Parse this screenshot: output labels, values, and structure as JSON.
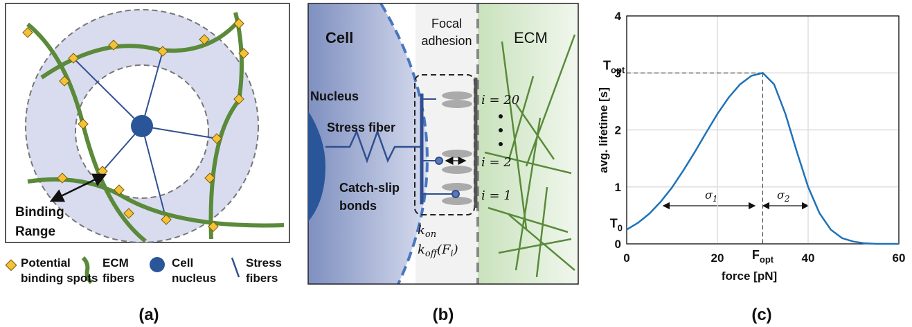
{
  "panel_a": {
    "binding_range": [
      "Binding",
      "Range"
    ],
    "legend": [
      [
        "Potential",
        "binding spots"
      ],
      [
        "ECM",
        "fibers"
      ],
      [
        "Cell",
        "nucleus"
      ],
      [
        "Stress",
        "fibers"
      ]
    ],
    "caption": "(a)"
  },
  "panel_b": {
    "cell": "Cell",
    "focal_adhesion": [
      "Focal",
      "adhesion"
    ],
    "ecm": "ECM",
    "nucleus": "Nucleus",
    "stress_fiber": "Stress fiber",
    "catch_slip": [
      "Catch-slip",
      "bonds"
    ],
    "bond_labels": [
      "i = 20",
      "i = 2",
      "i = 1"
    ],
    "k_on": [
      "k",
      "on"
    ],
    "k_off": [
      "k",
      "off",
      "(F",
      "i",
      ")"
    ],
    "caption": "(b)"
  },
  "chart_data": {
    "type": "line",
    "x_label": "force [pN]",
    "y_label": "avg. lifetime [s]",
    "x": [
      0,
      2.5,
      5,
      7.5,
      10,
      12.5,
      15,
      17.5,
      20,
      22.5,
      25,
      27.5,
      30,
      32.5,
      35,
      37.5,
      40,
      42.5,
      45,
      47.5,
      50,
      52.5,
      55,
      60
    ],
    "values": [
      0.25,
      0.37,
      0.53,
      0.74,
      0.99,
      1.29,
      1.61,
      1.95,
      2.28,
      2.57,
      2.8,
      2.95,
      3,
      2.8,
      2.28,
      1.62,
      1,
      0.54,
      0.25,
      0.1,
      0.04,
      0.01,
      0,
      0
    ],
    "color": "#1f72b8",
    "xlim": [
      0,
      60
    ],
    "ylim": [
      0,
      4
    ],
    "xticks": [
      0,
      20,
      40,
      60
    ],
    "yticks": [
      0,
      1,
      2,
      3,
      4
    ],
    "grid": true,
    "annotations": {
      "t_opt": [
        "T",
        "opt"
      ],
      "t_0": [
        "T",
        "0"
      ],
      "f_opt": [
        "F",
        "opt"
      ],
      "sigma_1": [
        "σ",
        "1"
      ],
      "sigma_2": [
        "σ",
        "2"
      ]
    },
    "caption": "(c)"
  }
}
